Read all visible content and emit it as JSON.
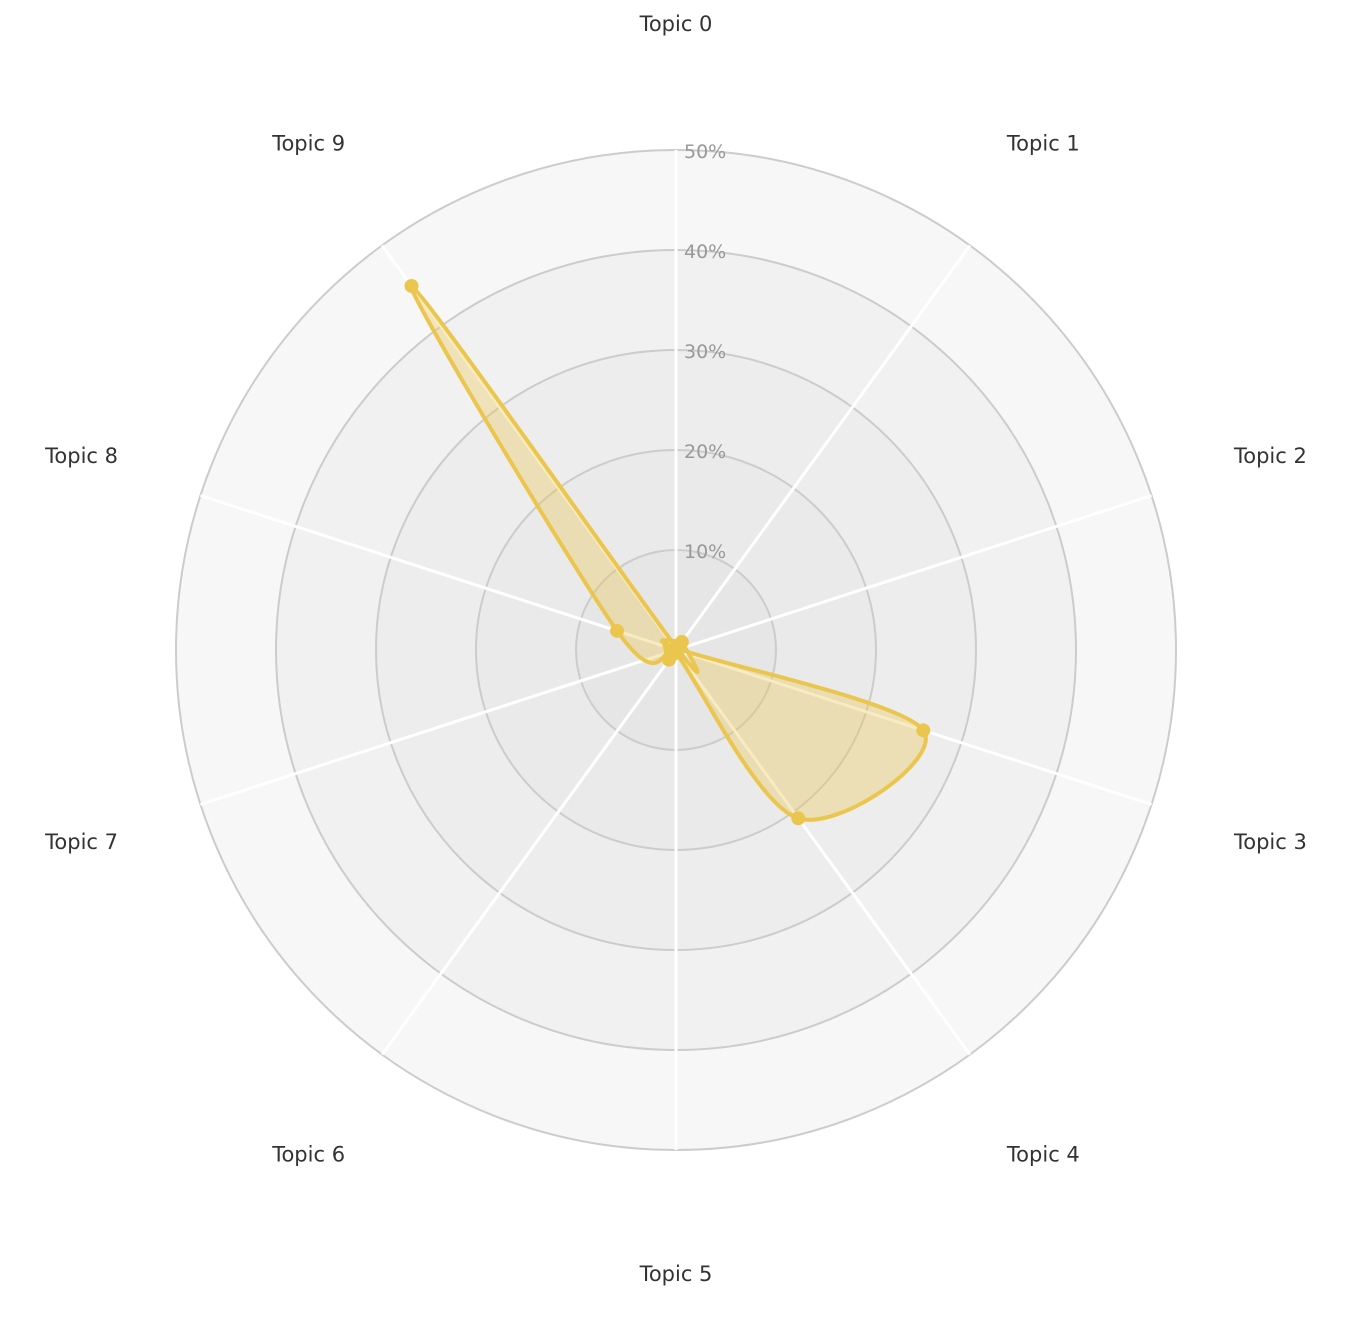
{
  "chart_data": {
    "type": "radar",
    "categories": [
      "Topic 0",
      "Topic 1",
      "Topic 2",
      "Topic 3",
      "Topic 4",
      "Topic 5",
      "Topic 6",
      "Topic 7",
      "Topic 8",
      "Topic 9"
    ],
    "series": [
      {
        "values": [
          0.3,
          1.0,
          0.3,
          26.0,
          20.8,
          0.3,
          1.2,
          0.5,
          6.2,
          45.0
        ],
        "color": "#EBC64F"
      }
    ],
    "rlim": [
      0,
      50
    ],
    "ticks": [
      10,
      20,
      30,
      40,
      50
    ],
    "tick_labels": [
      "10%",
      "20%",
      "30%",
      "40%",
      "50%"
    ],
    "grid": true,
    "curve": "smooth-closed"
  }
}
